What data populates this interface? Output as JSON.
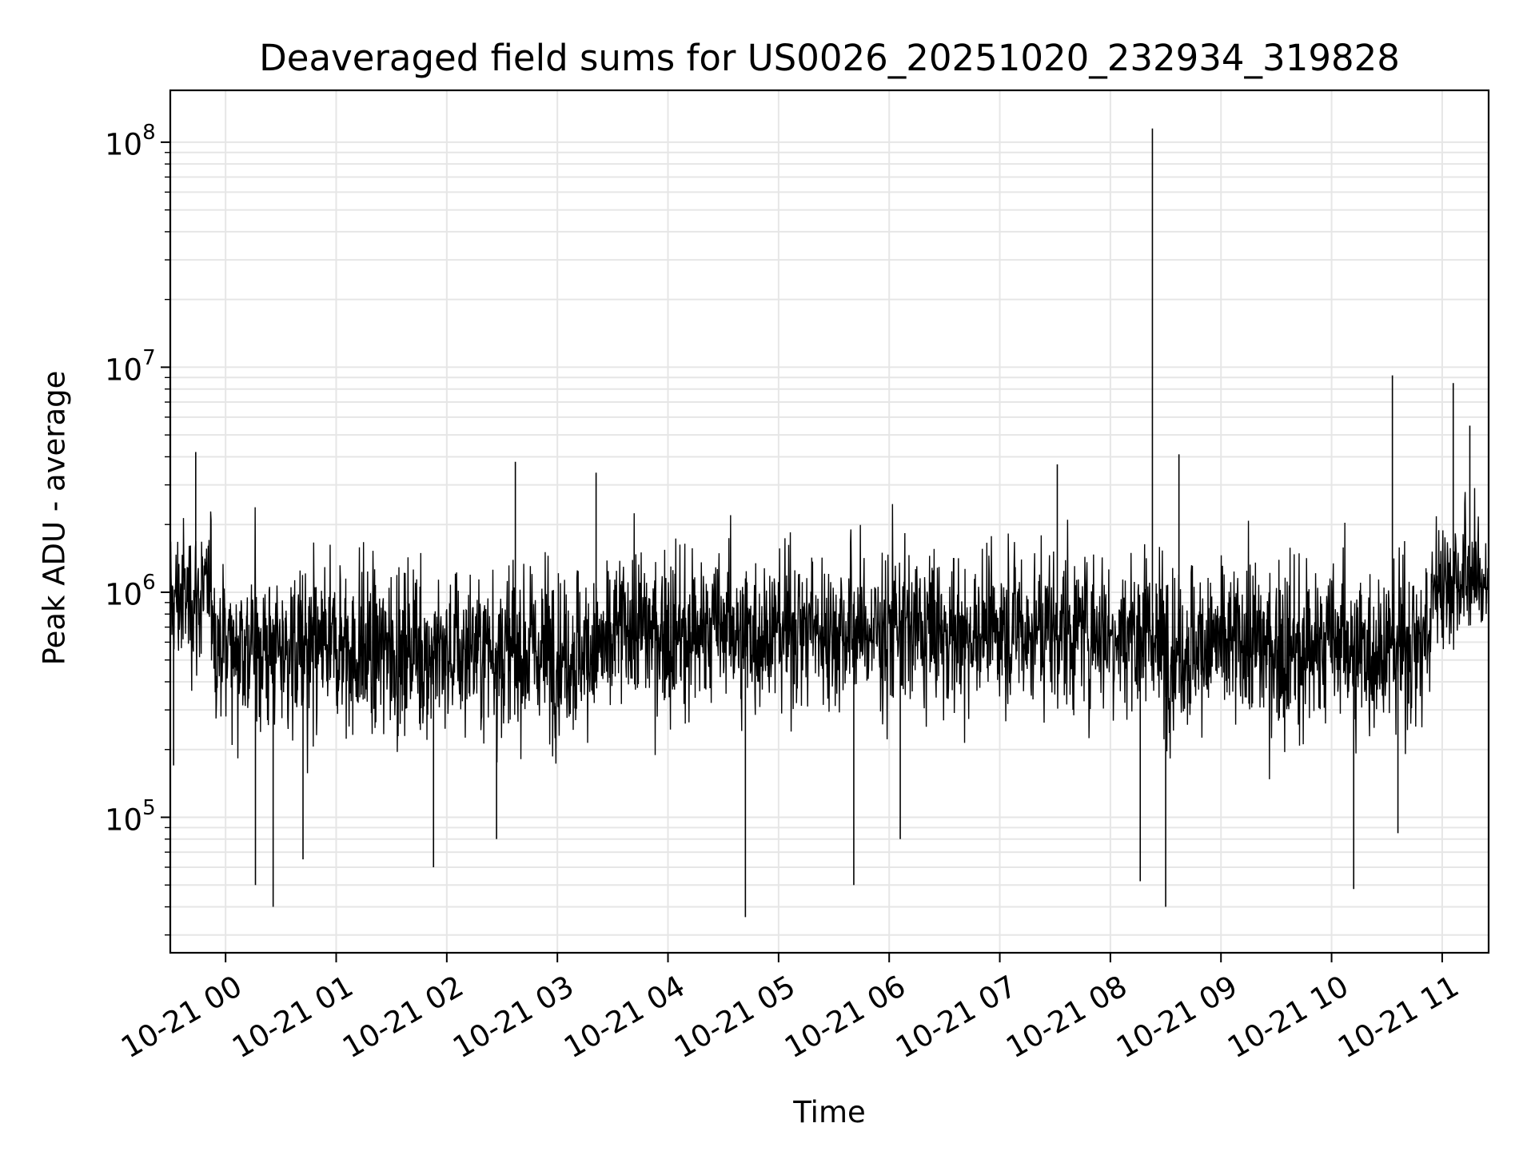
{
  "chart_data": {
    "type": "line",
    "title": "Deaveraged field sums for US0026_20251020_232934_319828",
    "xlabel": "Time",
    "ylabel": "Peak ADU - average",
    "yscale": "log",
    "ylim": [
      25000,
      170000000
    ],
    "xlim_hours": [
      -0.5,
      11.42
    ],
    "grid": true,
    "line_color": "#000000",
    "x_tick_hours": [
      0,
      1,
      2,
      3,
      4,
      5,
      6,
      7,
      8,
      9,
      10,
      11
    ],
    "x_tick_labels": [
      "10-21 00",
      "10-21 01",
      "10-21 02",
      "10-21 03",
      "10-21 04",
      "10-21 05",
      "10-21 06",
      "10-21 07",
      "10-21 08",
      "10-21 09",
      "10-21 10",
      "10-21 11"
    ],
    "y_tick_values": [
      100000,
      1000000,
      10000000,
      100000000
    ],
    "y_tick_bases": [
      "10",
      "10",
      "10",
      "10"
    ],
    "y_tick_exponents": [
      "5",
      "6",
      "7",
      "8"
    ],
    "series": [
      {
        "name": "deaveraged field sum",
        "segments": [
          {
            "start": -0.5,
            "end": -0.45,
            "median": 900000,
            "spread": 0.5
          },
          {
            "start": -0.45,
            "end": -0.1,
            "median": 950000,
            "spread": 0.55
          },
          {
            "start": -0.1,
            "end": 0.2,
            "median": 600000,
            "spread": 0.6
          },
          {
            "start": 0.2,
            "end": 3.5,
            "median": 550000,
            "spread": 0.62
          },
          {
            "start": 3.5,
            "end": 8.4,
            "median": 680000,
            "spread": 0.58
          },
          {
            "start": 8.4,
            "end": 10.9,
            "median": 580000,
            "spread": 0.62
          },
          {
            "start": 10.9,
            "end": 11.42,
            "median": 1150000,
            "spread": 0.5
          }
        ],
        "spikes": [
          {
            "x": -0.47,
            "y": 170000
          },
          {
            "x": -0.27,
            "y": 4200000
          },
          {
            "x": 0.27,
            "y": 50000
          },
          {
            "x": 0.43,
            "y": 40000
          },
          {
            "x": 0.7,
            "y": 65000
          },
          {
            "x": 1.88,
            "y": 60000
          },
          {
            "x": 2.45,
            "y": 80000
          },
          {
            "x": 2.62,
            "y": 3800000
          },
          {
            "x": 3.35,
            "y": 3400000
          },
          {
            "x": 4.7,
            "y": 36000
          },
          {
            "x": 5.68,
            "y": 50000
          },
          {
            "x": 6.1,
            "y": 80000
          },
          {
            "x": 7.52,
            "y": 3700000
          },
          {
            "x": 8.27,
            "y": 52000
          },
          {
            "x": 8.5,
            "y": 40000
          },
          {
            "x": 8.38,
            "y": 115000000
          },
          {
            "x": 8.62,
            "y": 4100000
          },
          {
            "x": 10.2,
            "y": 48000
          },
          {
            "x": 10.55,
            "y": 9200000
          },
          {
            "x": 10.6,
            "y": 85000
          },
          {
            "x": 11.1,
            "y": 8500000
          },
          {
            "x": 11.25,
            "y": 5500000
          }
        ]
      }
    ]
  }
}
